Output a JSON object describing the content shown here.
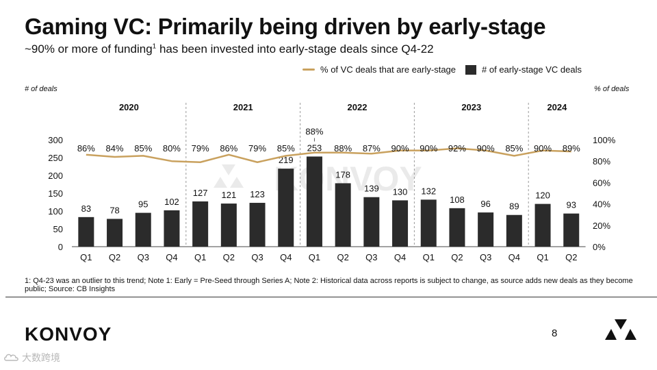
{
  "page": {
    "title": "Gaming VC: Primarily being driven by early-stage",
    "subtitle_before": "~90% or more of funding",
    "subtitle_sup": "1",
    "subtitle_after": " has been invested into early-stage deals since Q4-22",
    "footnote": "1: Q4-23 was an outlier to this trend; Note 1: Early = Pre-Seed through Series A; Note 2: Historical data across reports is subject to change, as source adds new deals as they become public; Source: CB Insights",
    "brand": "KONVOY",
    "page_number": "8",
    "watermark_text": "大数跨境",
    "watermark_icon": "cloud-logo-icon"
  },
  "chart_data": {
    "type": "bar",
    "title": "Gaming VC: Primarily being driven by early-stage",
    "ylabel": "# of deals",
    "y2label": "% of deals",
    "ylim": [
      0,
      300
    ],
    "y_ticks": [
      0,
      50,
      100,
      150,
      200,
      250,
      300
    ],
    "y2lim": [
      0,
      100
    ],
    "y2_ticks": [
      "0%",
      "20%",
      "40%",
      "60%",
      "80%",
      "100%"
    ],
    "legend_position": "top-right",
    "years": [
      {
        "label": "2020",
        "quarters": 4
      },
      {
        "label": "2021",
        "quarters": 4
      },
      {
        "label": "2022",
        "quarters": 4
      },
      {
        "label": "2023",
        "quarters": 4
      },
      {
        "label": "2024",
        "quarters": 2
      }
    ],
    "categories": [
      "Q1",
      "Q2",
      "Q3",
      "Q4",
      "Q1",
      "Q2",
      "Q3",
      "Q4",
      "Q1",
      "Q2",
      "Q3",
      "Q4",
      "Q1",
      "Q2",
      "Q3",
      "Q4",
      "Q1",
      "Q2"
    ],
    "series": [
      {
        "name": "# of early-stage VC deals",
        "kind": "bar",
        "axis": "left",
        "color": "#2b2b2b",
        "values": [
          83,
          78,
          95,
          102,
          127,
          121,
          123,
          219,
          253,
          178,
          139,
          130,
          132,
          108,
          96,
          89,
          120,
          93
        ]
      },
      {
        "name": "% of VC deals that are early-stage",
        "kind": "line",
        "axis": "right",
        "color": "#c9a15e",
        "values": [
          86,
          84,
          85,
          80,
          79,
          86,
          79,
          85,
          88,
          88,
          87,
          90,
          90,
          92,
          90,
          85,
          90,
          89
        ],
        "labels": [
          "86%",
          "84%",
          "85%",
          "80%",
          "79%",
          "86%",
          "79%",
          "85%",
          "88%",
          "88%",
          "87%",
          "90%",
          "90%",
          "92%",
          "90%",
          "85%",
          "90%",
          "89%"
        ]
      }
    ],
    "watermark": "KONVOY"
  }
}
